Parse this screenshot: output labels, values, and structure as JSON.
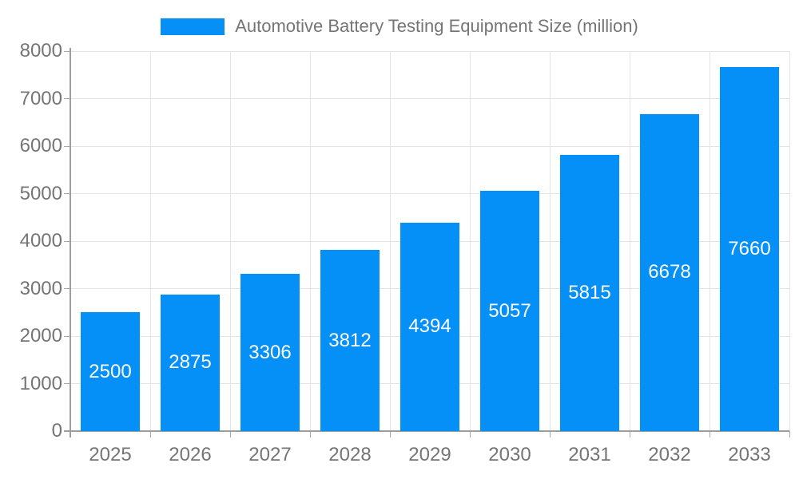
{
  "chart_data": {
    "type": "bar",
    "title": "Automotive Battery Testing Equipment Size (million)",
    "categories": [
      "2025",
      "2026",
      "2027",
      "2028",
      "2029",
      "2030",
      "2031",
      "2032",
      "2033"
    ],
    "series": [
      {
        "name": "Automotive Battery Testing Equipment Size (million)",
        "values": [
          2500,
          2875,
          3306,
          3812,
          4394,
          5057,
          5815,
          6678,
          7660
        ],
        "color": "#0590f8"
      }
    ],
    "value_labels": [
      "2500",
      "2875",
      "3306",
      "3812",
      "4394",
      "5057",
      "5815",
      "6678",
      "7660"
    ],
    "xlabel": "",
    "ylabel": "",
    "ylim": [
      0,
      8000
    ],
    "yticks": [
      0,
      1000,
      2000,
      3000,
      4000,
      5000,
      6000,
      7000,
      8000
    ],
    "grid": true,
    "legend_position": "top",
    "value_label_position": "inside-center"
  },
  "colors": {
    "bar": "#0590f8",
    "grid": "#e4e4e4",
    "axis": "#9e9e9e",
    "tick": "#a8a8a8",
    "text": "#757575",
    "value_label": "#ffffff",
    "background": "#ffffff"
  }
}
